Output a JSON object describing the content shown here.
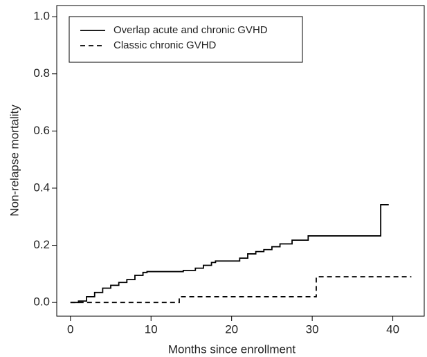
{
  "chart_data": {
    "type": "step",
    "xlabel": "Months since enrollment",
    "ylabel": "Non-relapse mortality",
    "xlim": [
      -1.7,
      43.9
    ],
    "ylim": [
      -0.048,
      1.039
    ],
    "xticks": [
      0,
      10,
      20,
      30,
      40
    ],
    "yticks": [
      {
        "value": 0,
        "label": "0.0"
      },
      {
        "value": 0.2,
        "label": "0.2"
      },
      {
        "value": 0.4,
        "label": "0.4"
      },
      {
        "value": 0.6,
        "label": "0.6"
      },
      {
        "value": 0.8,
        "label": "0.8"
      },
      {
        "value": 1.0,
        "label": "1.0"
      }
    ],
    "legend": "top-left",
    "series": [
      {
        "name": "Overlap acute and chronic GVHD",
        "color": "#000000",
        "linestyle": "solid",
        "x": [
          0,
          1,
          2,
          3,
          4,
          5,
          6,
          7,
          8,
          9,
          9.5,
          14,
          15.5,
          16.5,
          17.5,
          18,
          21,
          22,
          23,
          24,
          25,
          26,
          27.5,
          29.5,
          38.5,
          39.5
        ],
        "values": [
          0,
          0.005,
          0.02,
          0.035,
          0.05,
          0.06,
          0.07,
          0.08,
          0.095,
          0.105,
          0.108,
          0.112,
          0.12,
          0.13,
          0.14,
          0.145,
          0.155,
          0.17,
          0.178,
          0.185,
          0.195,
          0.205,
          0.218,
          0.233,
          0.342,
          0.342
        ]
      },
      {
        "name": "Classic chronic GVHD",
        "color": "#000000",
        "linestyle": "dashed",
        "x": [
          0,
          13.5,
          30.5,
          42.3
        ],
        "values": [
          0,
          0.02,
          0.09,
          0.09
        ]
      }
    ]
  }
}
